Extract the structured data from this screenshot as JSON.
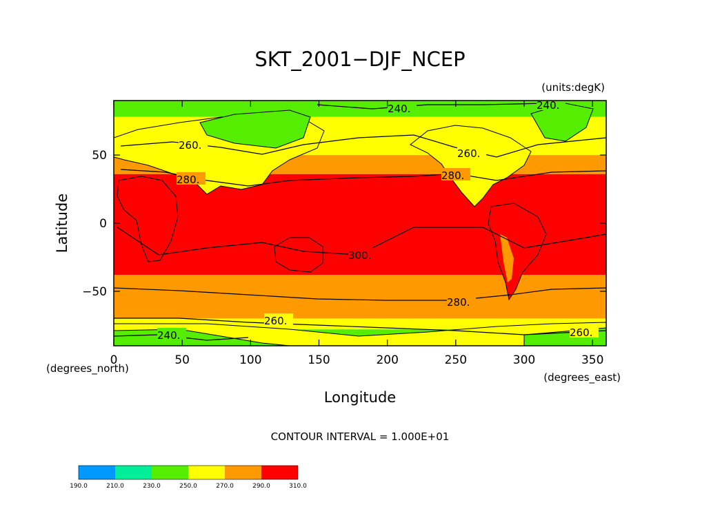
{
  "chart_data": {
    "type": "heatmap",
    "title": "SKT_2001−DJF_NCEP",
    "units_label": "(units:degK)",
    "xlabel": "Longitude",
    "ylabel": "Latitude",
    "x_units_label": "(degrees_east)",
    "y_units_label": "(degrees_north)",
    "xlim": [
      0,
      360
    ],
    "ylim": [
      -90,
      90
    ],
    "x_ticks": [
      0,
      50,
      100,
      150,
      200,
      250,
      300,
      350
    ],
    "y_ticks": [
      -50,
      0,
      50
    ],
    "x_tick_labels": [
      "0",
      "50",
      "100",
      "150",
      "200",
      "250",
      "300",
      "350"
    ],
    "y_tick_labels": [
      "−50",
      "0",
      "50"
    ],
    "contour_interval_label": "CONTOUR INTERVAL = 1.000E+01",
    "contour_labels": [
      "240.",
      "240.",
      "260.",
      "260.",
      "280.",
      "280.",
      "300.",
      "280.",
      "260.",
      "240.",
      "260."
    ],
    "colorbar": {
      "levels": [
        190,
        210,
        230,
        250,
        270,
        290,
        310
      ],
      "labels": [
        "190.0",
        "210.0",
        "230.0",
        "250.0",
        "270.0",
        "290.0",
        "310.0"
      ],
      "colors": [
        "#0099ff",
        "#00ee99",
        "#55ee00",
        "#ffff00",
        "#ff9900",
        "#ff0000"
      ]
    },
    "zonal_bands": [
      {
        "lat": [
          78,
          90
        ],
        "value": 240
      },
      {
        "lat": [
          65,
          78
        ],
        "value": 255
      },
      {
        "lat": [
          50,
          65
        ],
        "value": 265
      },
      {
        "lat": [
          36,
          50
        ],
        "value": 282
      },
      {
        "lat": [
          -38,
          36
        ],
        "value": 300
      },
      {
        "lat": [
          -70,
          -38
        ],
        "value": 282
      },
      {
        "lat": [
          -78,
          -70
        ],
        "value": 262
      },
      {
        "lat": [
          -90,
          -78
        ],
        "value": 245
      }
    ]
  }
}
